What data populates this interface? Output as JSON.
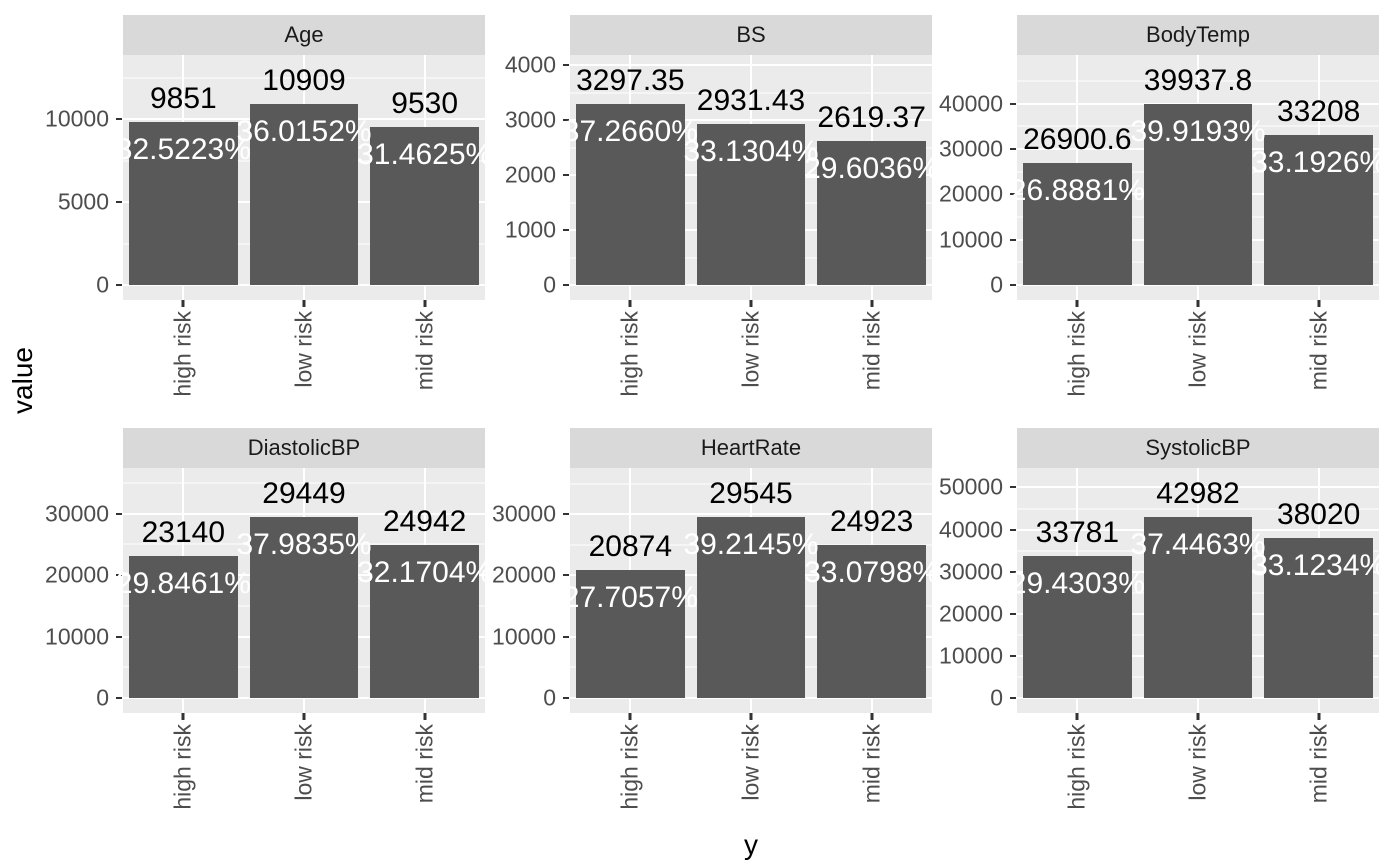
{
  "figure": {
    "ylabel": "value",
    "xlabel": "y"
  },
  "chart_data": {
    "type": "bar",
    "layout": "facet_wrap 2 rows x 3 cols, free y scales, grid on, no legend",
    "categories": [
      "high risk",
      "low risk",
      "mid risk"
    ],
    "bar_color": "#595959",
    "panel_bg": "#ebebeb",
    "strip_bg": "#d9d9d9",
    "grid_color": "#ffffff",
    "axis_text_color": "#4d4d4d",
    "value_label_color": "#000000",
    "pct_label_color": "#ffffff",
    "facets": [
      {
        "title": "Age",
        "values": [
          9851,
          10909,
          9530
        ],
        "value_labels": [
          "9851",
          "10909",
          "9530"
        ],
        "pct_labels": [
          "32.5223%",
          "36.0152%",
          "31.4625%"
        ],
        "yticks": [
          0,
          5000,
          10000
        ],
        "ylim": [
          0,
          13860
        ]
      },
      {
        "title": "BS",
        "values": [
          3297.35,
          2931.43,
          2619.37
        ],
        "value_labels": [
          "3297.35",
          "2931.43",
          "2619.37"
        ],
        "pct_labels": [
          "37.2660%",
          "33.1304%",
          "29.6036%"
        ],
        "yticks": [
          0,
          1000,
          2000,
          3000,
          4000
        ],
        "ylim": [
          0,
          4190
        ]
      },
      {
        "title": "BodyTemp",
        "values": [
          26900.6,
          39937.8,
          33208
        ],
        "value_labels": [
          "26900.6",
          "39937.8",
          "33208"
        ],
        "pct_labels": [
          "26.8881%",
          "39.9193%",
          "33.1926%"
        ],
        "yticks": [
          0,
          10000,
          20000,
          30000,
          40000
        ],
        "ylim": [
          0,
          50750
        ]
      },
      {
        "title": "DiastolicBP",
        "values": [
          23140,
          29449,
          24942
        ],
        "value_labels": [
          "23140",
          "29449",
          "24942"
        ],
        "pct_labels": [
          "29.8461%",
          "37.9835%",
          "32.1704%"
        ],
        "yticks": [
          0,
          10000,
          20000,
          30000
        ],
        "ylim": [
          0,
          37420
        ]
      },
      {
        "title": "HeartRate",
        "values": [
          20874,
          29545,
          24923
        ],
        "value_labels": [
          "20874",
          "29545",
          "24923"
        ],
        "pct_labels": [
          "27.7057%",
          "39.2145%",
          "33.0798%"
        ],
        "yticks": [
          0,
          10000,
          20000,
          30000
        ],
        "ylim": [
          0,
          37545
        ]
      },
      {
        "title": "SystolicBP",
        "values": [
          33781,
          42982,
          38020
        ],
        "value_labels": [
          "33781",
          "42982",
          "38020"
        ],
        "pct_labels": [
          "29.4303%",
          "37.4463%",
          "33.1234%"
        ],
        "yticks": [
          0,
          10000,
          20000,
          30000,
          40000,
          50000
        ],
        "ylim": [
          0,
          54620
        ]
      }
    ]
  }
}
